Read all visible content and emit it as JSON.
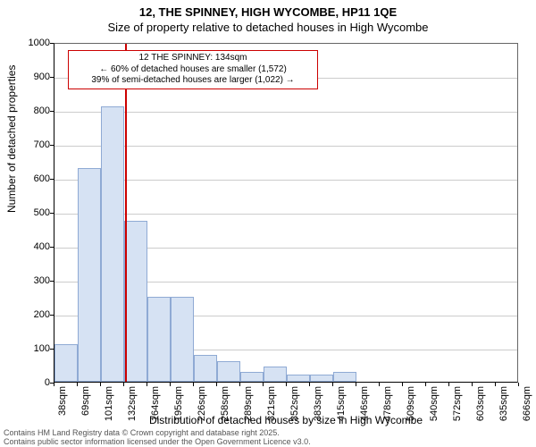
{
  "title_line1": "12, THE SPINNEY, HIGH WYCOMBE, HP11 1QE",
  "title_line2": "Size of property relative to detached houses in High Wycombe",
  "ylabel": "Number of detached properties",
  "xlabel": "Distribution of detached houses by size in High Wycombe",
  "footer_line1": "Contains HM Land Registry data © Crown copyright and database right 2025.",
  "footer_line2": "Contains public sector information licensed under the Open Government Licence v3.0.",
  "chart": {
    "type": "histogram",
    "background_color": "#ffffff",
    "grid_color": "#cccccc",
    "axis_color": "#000000",
    "ylim": [
      0,
      1000
    ],
    "ytick_step": 100,
    "bar_fill": "#d6e2f3",
    "bar_stroke": "#8faad4",
    "refline_color": "#cc0000",
    "refline_x_value": 134,
    "annotation": {
      "border_color": "#cc0000",
      "bg_color": "#ffffff",
      "line1": "12 THE SPINNEY: 134sqm",
      "line2": "← 60% of detached houses are smaller (1,572)",
      "line3": "39% of semi-detached houses are larger (1,022) →"
    },
    "x_ticks": [
      {
        "value": 38,
        "label": "38sqm"
      },
      {
        "value": 69,
        "label": "69sqm"
      },
      {
        "value": 101,
        "label": "101sqm"
      },
      {
        "value": 132,
        "label": "132sqm"
      },
      {
        "value": 164,
        "label": "164sqm"
      },
      {
        "value": 195,
        "label": "195sqm"
      },
      {
        "value": 226,
        "label": "226sqm"
      },
      {
        "value": 258,
        "label": "258sqm"
      },
      {
        "value": 289,
        "label": "289sqm"
      },
      {
        "value": 321,
        "label": "321sqm"
      },
      {
        "value": 352,
        "label": "352sqm"
      },
      {
        "value": 383,
        "label": "383sqm"
      },
      {
        "value": 415,
        "label": "415sqm"
      },
      {
        "value": 446,
        "label": "446sqm"
      },
      {
        "value": 478,
        "label": "478sqm"
      },
      {
        "value": 509,
        "label": "509sqm"
      },
      {
        "value": 540,
        "label": "540sqm"
      },
      {
        "value": 572,
        "label": "572sqm"
      },
      {
        "value": 603,
        "label": "603sqm"
      },
      {
        "value": 635,
        "label": "635sqm"
      },
      {
        "value": 666,
        "label": "666sqm"
      }
    ],
    "x_range": [
      38,
      666
    ],
    "bars": [
      {
        "x0": 38,
        "x1": 69,
        "y": 110
      },
      {
        "x0": 69,
        "x1": 101,
        "y": 630
      },
      {
        "x0": 101,
        "x1": 132,
        "y": 810
      },
      {
        "x0": 132,
        "x1": 164,
        "y": 475
      },
      {
        "x0": 164,
        "x1": 195,
        "y": 250
      },
      {
        "x0": 195,
        "x1": 226,
        "y": 250
      },
      {
        "x0": 226,
        "x1": 258,
        "y": 80
      },
      {
        "x0": 258,
        "x1": 289,
        "y": 60
      },
      {
        "x0": 289,
        "x1": 321,
        "y": 30
      },
      {
        "x0": 321,
        "x1": 352,
        "y": 45
      },
      {
        "x0": 352,
        "x1": 383,
        "y": 20
      },
      {
        "x0": 383,
        "x1": 415,
        "y": 20
      },
      {
        "x0": 415,
        "x1": 446,
        "y": 30
      },
      {
        "x0": 446,
        "x1": 478,
        "y": 0
      },
      {
        "x0": 478,
        "x1": 509,
        "y": 0
      },
      {
        "x0": 509,
        "x1": 540,
        "y": 0
      },
      {
        "x0": 540,
        "x1": 572,
        "y": 0
      },
      {
        "x0": 572,
        "x1": 603,
        "y": 0
      },
      {
        "x0": 603,
        "x1": 635,
        "y": 0
      },
      {
        "x0": 635,
        "x1": 666,
        "y": 0
      }
    ]
  }
}
